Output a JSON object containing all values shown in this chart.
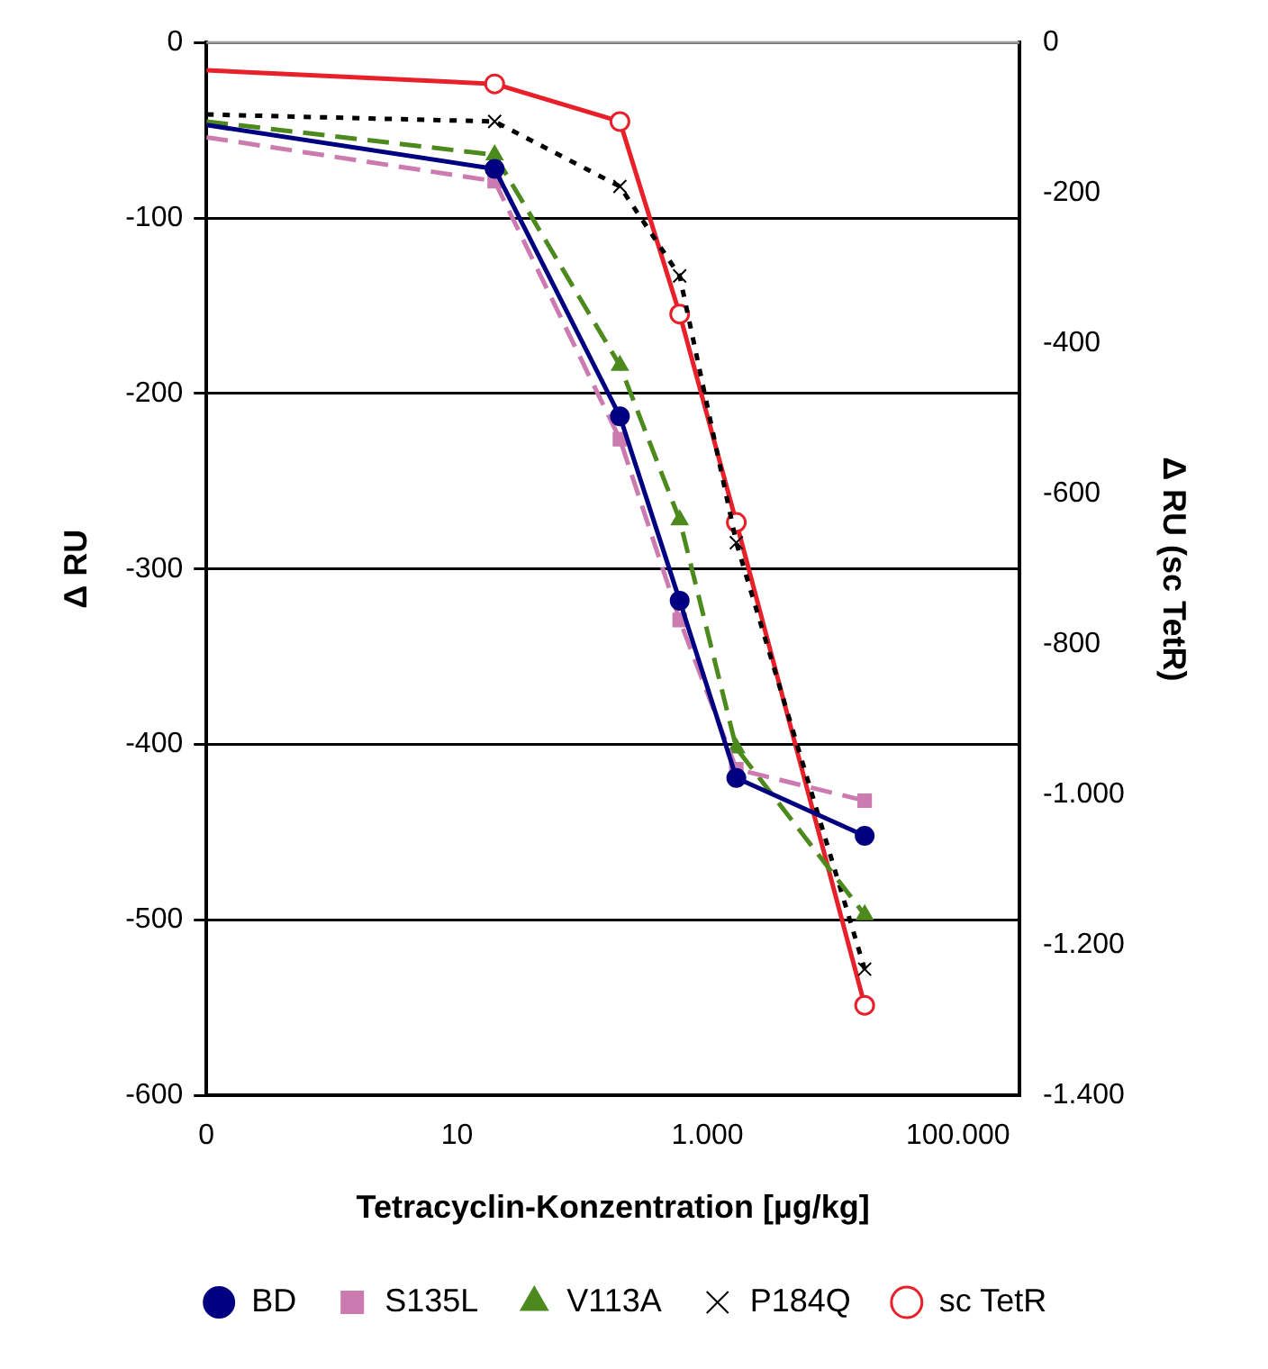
{
  "chart_data": {
    "type": "line",
    "xlabel": "Tetracyclin-Konzentration [µg/kg]",
    "ylabel": "Δ RU",
    "y2label": "Δ RU (sc TetR)",
    "x": [
      0.1,
      20,
      200,
      600,
      1700,
      18000
    ],
    "series": [
      {
        "name": "BD",
        "color": "#000080",
        "marker": "circle",
        "line_style": "solid",
        "values": [
          -47,
          -72,
          -213,
          -318,
          -419,
          -452
        ]
      },
      {
        "name": "S135L",
        "color": "#cc7bb0",
        "marker": "square",
        "line_style": "dashed",
        "values": [
          -54,
          -79,
          -226,
          -329,
          -414,
          -432
        ]
      },
      {
        "name": "V113A",
        "color": "#4d8a1e",
        "marker": "triangle",
        "line_style": "dashed",
        "values": [
          -45,
          -64,
          -184,
          -272,
          -402,
          -497
        ]
      },
      {
        "name": "P184Q",
        "color": "#000000",
        "marker": "cross",
        "line_style": "dotted",
        "values": [
          -41,
          -45,
          -82,
          -133,
          -285,
          -528
        ]
      },
      {
        "name": "sc TetR",
        "color": "#e8202a",
        "marker": "circle",
        "line_style": "solid",
        "axis": "y2",
        "values": [
          -37,
          -55,
          -105,
          -361,
          -638,
          -1280
        ]
      }
    ],
    "log": "x",
    "xlim": [
      0.1,
      310000
    ],
    "xticks": [
      {
        "value": 0.1,
        "label": "0"
      },
      10,
      {
        "value": 1000,
        "label": "1.000"
      },
      {
        "value": 100000,
        "label": "100.000"
      }
    ],
    "ylim": [
      -600,
      0
    ],
    "yticks": [
      -600,
      -500,
      -400,
      -300,
      -200,
      -100,
      0
    ],
    "y2lim": [
      -1400,
      0
    ],
    "y2ticks": [
      {
        "value": -1400,
        "label": "-1.400"
      },
      {
        "value": -1200,
        "label": "-1.200"
      },
      {
        "value": -1000,
        "label": "-1.000"
      },
      -800,
      -600,
      -400,
      -200,
      0
    ],
    "grid": "y",
    "legend": "bottom"
  }
}
